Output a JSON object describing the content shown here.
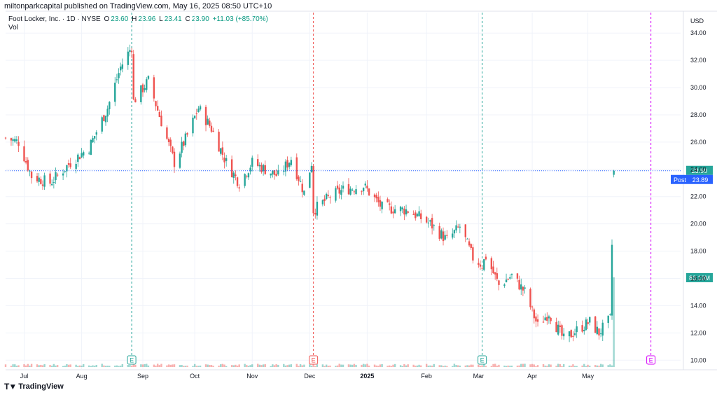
{
  "published": "miltonparkcapital published on TradingView.com, May 16, 2025 08:50 UTC+10",
  "legend": {
    "name": "Foot Locker, Inc. · 1D · NYSE",
    "open_label": "O",
    "open": "23.60",
    "high_label": "H",
    "high": "23.96",
    "low_label": "L",
    "low": "23.41",
    "close_label": "C",
    "close": "23.90",
    "change": "+11.03 (+85.70%)",
    "vol_label": "Vol"
  },
  "currency": "USD",
  "footer_brand": "TradingView",
  "colors": {
    "up": "#26a69a",
    "down": "#ef5350",
    "price_line": "#2962ff",
    "post": "#2962ff",
    "vol_badge": "#26a69a",
    "grid": "#f0f3fa"
  },
  "badges": {
    "last_price": "23.90",
    "post_label": "Post",
    "post_price": "23.89",
    "volume": "83.19M"
  },
  "chart_data": {
    "type": "candlestick",
    "y_axis": {
      "min": 9.5,
      "max": 35.5,
      "ticks": [
        "34.00",
        "32.00",
        "30.00",
        "28.00",
        "26.00",
        "24.00",
        "22.00",
        "20.00",
        "18.00",
        "16.00",
        "14.00",
        "12.00",
        "10.00"
      ]
    },
    "x_axis": {
      "start": "2024-06-21",
      "end": "2025-06-20",
      "ticks": [
        {
          "label": "Jul",
          "date": "2024-07-01"
        },
        {
          "label": "Aug",
          "date": "2024-08-01"
        },
        {
          "label": "Sep",
          "date": "2024-09-03"
        },
        {
          "label": "Oct",
          "date": "2024-10-01"
        },
        {
          "label": "Nov",
          "date": "2024-11-01"
        },
        {
          "label": "Dec",
          "date": "2024-12-02"
        },
        {
          "label": "2025",
          "date": "2025-01-02",
          "bold": true
        },
        {
          "label": "Feb",
          "date": "2025-02-03"
        },
        {
          "label": "Mar",
          "date": "2025-03-03"
        },
        {
          "label": "Apr",
          "date": "2025-04-01"
        },
        {
          "label": "May",
          "date": "2025-05-01"
        }
      ]
    },
    "earnings_markers": [
      {
        "date": "2024-08-28",
        "label": "E",
        "color": "#26a69a"
      },
      {
        "date": "2024-12-04",
        "label": "E",
        "color": "#ef5350"
      },
      {
        "date": "2025-03-05",
        "label": "E",
        "color": "#26a69a"
      },
      {
        "date": "2025-06-04",
        "label": "E",
        "color": "#d500f9"
      }
    ],
    "last_price": 23.9,
    "anchors": [
      [
        "2024-06-21",
        26.3
      ],
      [
        "2024-06-28",
        26.0
      ],
      [
        "2024-07-05",
        23.5
      ],
      [
        "2024-07-15",
        23.0
      ],
      [
        "2024-07-26",
        24.5
      ],
      [
        "2024-08-05",
        25.6
      ],
      [
        "2024-08-15",
        28.5
      ],
      [
        "2024-08-22",
        31.5
      ],
      [
        "2024-08-28",
        33.0
      ],
      [
        "2024-08-29",
        29.0
      ],
      [
        "2024-09-06",
        30.5
      ],
      [
        "2024-09-13",
        27.5
      ],
      [
        "2024-09-20",
        24.5
      ],
      [
        "2024-09-27",
        26.5
      ],
      [
        "2024-10-03",
        28.5
      ],
      [
        "2024-10-10",
        27.0
      ],
      [
        "2024-10-18",
        24.5
      ],
      [
        "2024-10-25",
        23.0
      ],
      [
        "2024-11-01",
        24.5
      ],
      [
        "2024-11-08",
        24.0
      ],
      [
        "2024-11-15",
        23.5
      ],
      [
        "2024-11-22",
        24.8
      ],
      [
        "2024-11-29",
        22.3
      ],
      [
        "2024-12-03",
        24.5
      ],
      [
        "2024-12-04",
        21.0
      ],
      [
        "2024-12-13",
        22.0
      ],
      [
        "2024-12-20",
        22.5
      ],
      [
        "2024-12-31",
        22.8
      ],
      [
        "2025-01-10",
        21.2
      ],
      [
        "2025-01-24",
        21.0
      ],
      [
        "2025-02-05",
        20.0
      ],
      [
        "2025-02-14",
        18.8
      ],
      [
        "2025-02-21",
        19.8
      ],
      [
        "2025-02-28",
        17.5
      ],
      [
        "2025-03-05",
        17.0
      ],
      [
        "2025-03-07",
        17.6
      ],
      [
        "2025-03-14",
        15.5
      ],
      [
        "2025-03-21",
        16.2
      ],
      [
        "2025-03-28",
        15.0
      ],
      [
        "2025-04-04",
        12.5
      ],
      [
        "2025-04-10",
        13.5
      ],
      [
        "2025-04-18",
        11.5
      ],
      [
        "2025-04-25",
        12.2
      ],
      [
        "2025-05-02",
        12.8
      ],
      [
        "2025-05-07",
        12.0
      ],
      [
        "2025-05-13",
        13.0
      ],
      [
        "2025-05-15",
        23.9
      ]
    ],
    "volume_max": 83.19,
    "volume_unit": "M"
  }
}
